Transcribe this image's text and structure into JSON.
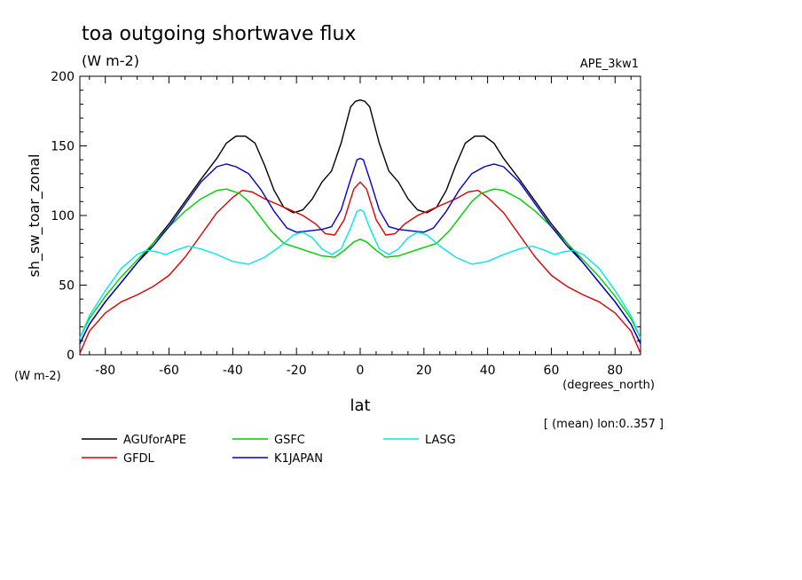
{
  "chart_data": {
    "type": "line",
    "title": "toa outgoing shortwave flux",
    "subtitle": "(W m-2)",
    "dataset": "APE_3kw1",
    "ylabel": "sh_sw_toar_zonal",
    "yunits": "(W m-2)",
    "xlabel": "lat",
    "xunits": "(degrees_north)",
    "note": "[ (mean) lon:0..357 ]",
    "xlim": [
      -88,
      88
    ],
    "ylim": [
      0,
      200
    ],
    "xticks": [
      -80,
      -60,
      -40,
      -20,
      0,
      20,
      40,
      60,
      80
    ],
    "xtick_labels": [
      "-80",
      "-60",
      "-40",
      "-20",
      "0",
      "20",
      "40",
      "60",
      "80"
    ],
    "yticks": [
      0,
      50,
      100,
      150,
      200
    ],
    "ytick_labels": [
      "0",
      "50",
      "100",
      "150",
      "200"
    ],
    "series": [
      {
        "name": "AGUforAPE",
        "color": "#000000",
        "x": [
          -88,
          -85,
          -80,
          -75,
          -70,
          -65,
          -60,
          -55,
          -50,
          -45,
          -42,
          -39,
          -36,
          -33,
          -30,
          -27,
          -24,
          -21,
          -18,
          -15,
          -12,
          -9,
          -6,
          -3,
          -1.5,
          0,
          1.5,
          3,
          6,
          9,
          12,
          15,
          18,
          21,
          24,
          27,
          30,
          33,
          36,
          39,
          42,
          45,
          50,
          55,
          60,
          65,
          70,
          75,
          80,
          85,
          88
        ],
        "y": [
          8,
          22,
          38,
          52,
          66,
          80,
          94,
          110,
          126,
          141,
          152,
          157,
          157,
          152,
          136,
          118,
          106,
          102,
          104,
          112,
          124,
          132,
          152,
          178,
          182,
          183,
          182,
          178,
          152,
          132,
          124,
          112,
          104,
          102,
          106,
          118,
          136,
          152,
          157,
          157,
          152,
          141,
          126,
          110,
          94,
          80,
          66,
          52,
          38,
          22,
          8
        ]
      },
      {
        "name": "GFDL",
        "color": "#dd0000",
        "x": [
          -88,
          -85,
          -80,
          -75,
          -70,
          -65,
          -60,
          -55,
          -50,
          -45,
          -40,
          -37,
          -34,
          -30,
          -26,
          -22,
          -18,
          -14,
          -11,
          -8,
          -5,
          -2,
          0,
          2,
          5,
          8,
          11,
          14,
          18,
          22,
          26,
          30,
          34,
          37,
          40,
          45,
          50,
          55,
          60,
          65,
          70,
          75,
          80,
          85,
          88
        ],
        "y": [
          1,
          17,
          30,
          38,
          43,
          49,
          57,
          70,
          86,
          102,
          113,
          118,
          117,
          112,
          108,
          104,
          100,
          94,
          87,
          86,
          97,
          119,
          124,
          119,
          97,
          86,
          87,
          94,
          100,
          104,
          108,
          112,
          117,
          118,
          113,
          102,
          86,
          70,
          57,
          49,
          43,
          38,
          30,
          17,
          1
        ]
      },
      {
        "name": "GSFC",
        "color": "#00cc00",
        "x": [
          -88,
          -85,
          -80,
          -75,
          -70,
          -65,
          -60,
          -55,
          -50,
          -45,
          -42,
          -38,
          -35,
          -32,
          -28,
          -24,
          -20,
          -16,
          -12,
          -8,
          -5,
          -2,
          0,
          2,
          5,
          8,
          12,
          16,
          20,
          24,
          28,
          32,
          35,
          38,
          42,
          45,
          50,
          55,
          60,
          65,
          70,
          75,
          80,
          85,
          88
        ],
        "y": [
          12,
          26,
          42,
          56,
          68,
          80,
          92,
          103,
          112,
          118,
          119,
          116,
          110,
          101,
          89,
          80,
          77,
          74,
          71,
          70,
          75,
          81,
          83,
          81,
          75,
          70,
          71,
          74,
          77,
          80,
          89,
          101,
          110,
          116,
          119,
          118,
          112,
          103,
          92,
          80,
          68,
          56,
          42,
          26,
          12
        ]
      },
      {
        "name": "K1JAPAN",
        "color": "#0000cc",
        "x": [
          -88,
          -85,
          -80,
          -75,
          -70,
          -65,
          -60,
          -55,
          -50,
          -45,
          -42,
          -39,
          -35,
          -31,
          -27,
          -23,
          -20,
          -16,
          -12,
          -9,
          -6,
          -3,
          -1,
          0,
          1,
          3,
          6,
          9,
          12,
          16,
          20,
          23,
          27,
          31,
          35,
          39,
          42,
          45,
          50,
          55,
          60,
          65,
          70,
          75,
          80,
          85,
          88
        ],
        "y": [
          8,
          22,
          38,
          52,
          66,
          78,
          92,
          108,
          124,
          135,
          137,
          135,
          130,
          118,
          103,
          91,
          88,
          89,
          90,
          92,
          104,
          126,
          140,
          141,
          140,
          126,
          104,
          92,
          90,
          89,
          88,
          91,
          103,
          118,
          130,
          135,
          137,
          135,
          124,
          108,
          92,
          78,
          66,
          52,
          38,
          22,
          8
        ]
      },
      {
        "name": "LASG",
        "color": "#00e8e8",
        "x": [
          -88,
          -85,
          -80,
          -75,
          -70,
          -67,
          -64,
          -61,
          -58,
          -54,
          -50,
          -45,
          -40,
          -35,
          -30,
          -25,
          -21,
          -18,
          -15,
          -12,
          -9,
          -6,
          -3,
          -1,
          0,
          1,
          3,
          6,
          9,
          12,
          15,
          18,
          21,
          25,
          30,
          35,
          40,
          45,
          50,
          54,
          58,
          61,
          64,
          67,
          70,
          75,
          80,
          85,
          88
        ],
        "y": [
          12,
          28,
          46,
          62,
          72,
          75,
          74,
          72,
          75,
          78,
          76,
          72,
          67,
          65,
          70,
          78,
          86,
          88,
          84,
          76,
          72,
          76,
          91,
          103,
          104,
          103,
          91,
          76,
          72,
          76,
          84,
          88,
          86,
          78,
          70,
          65,
          67,
          72,
          76,
          78,
          75,
          72,
          74,
          75,
          72,
          62,
          46,
          28,
          12
        ]
      }
    ]
  }
}
